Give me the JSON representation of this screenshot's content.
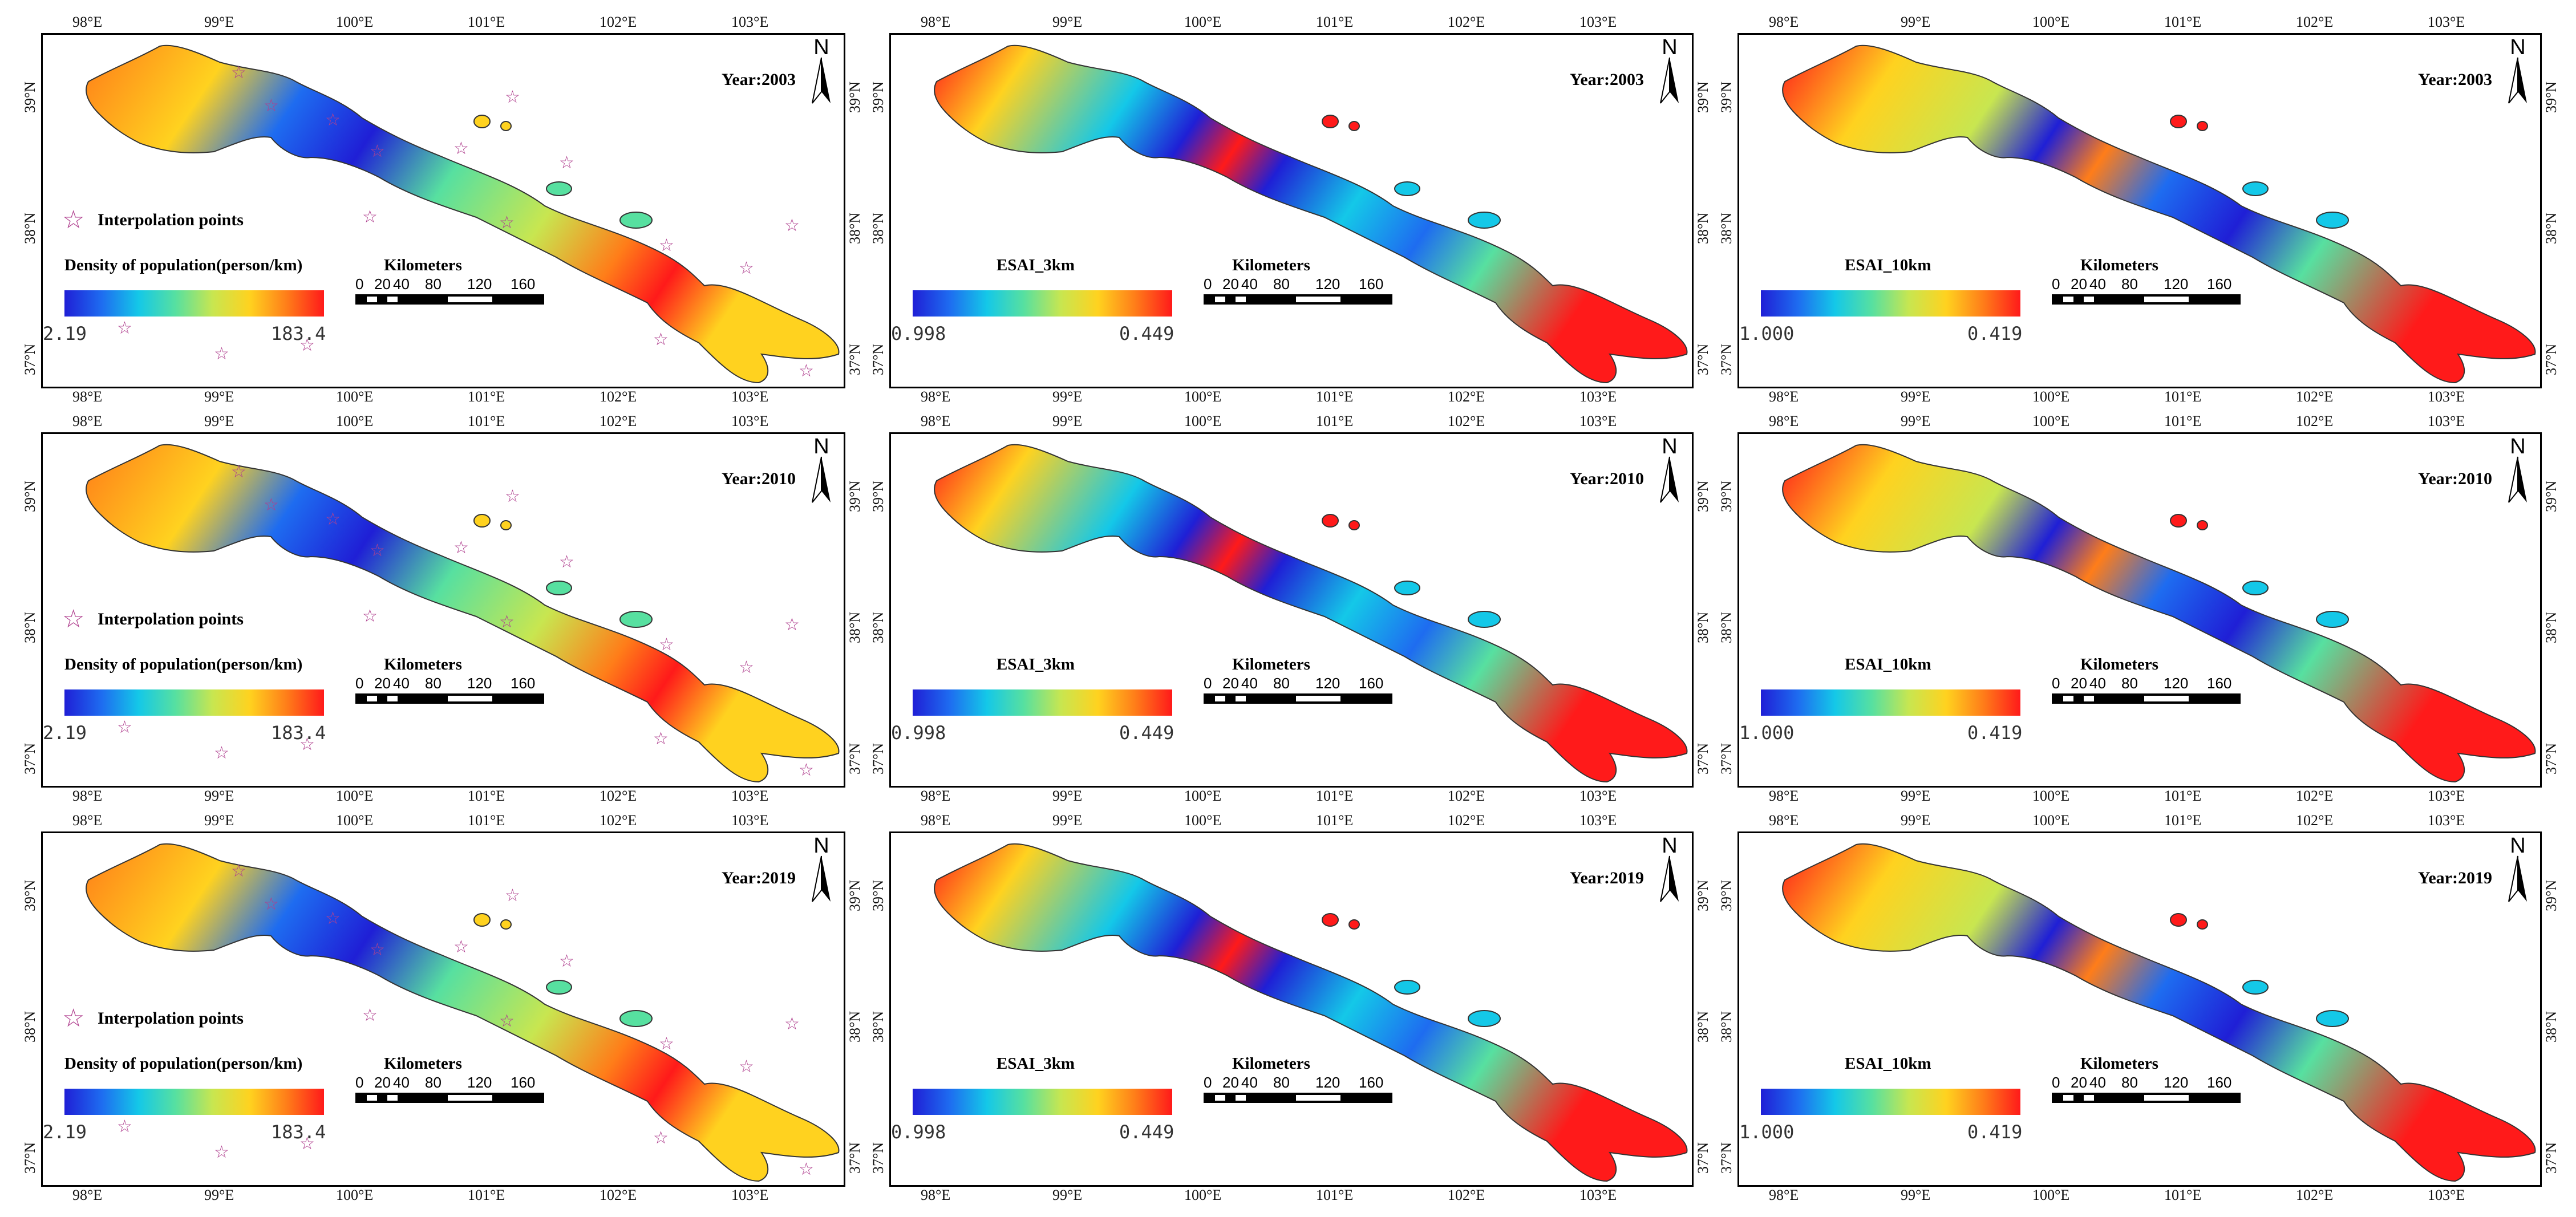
{
  "figure": {
    "rows": [
      {
        "year_label": "Year:2003"
      },
      {
        "year_label": "Year:2010"
      },
      {
        "year_label": "Year:2019"
      }
    ],
    "columns": [
      {
        "legend_title": "Density of population(person/km)",
        "min_label": "2.19",
        "max_label": "183.4",
        "colors": [
          "#1f1fd6",
          "#1e6cf0",
          "#14c8e8",
          "#57e0a0",
          "#c8e650",
          "#ffd21f",
          "#ff7d19",
          "#ff1a1a"
        ],
        "show_points": true
      },
      {
        "legend_title": "ESAI_3km",
        "min_label": "0.998",
        "max_label": "0.449",
        "colors": [
          "#1f1fd6",
          "#1e6cf0",
          "#14c8e8",
          "#57e0a0",
          "#c8e650",
          "#ffd21f",
          "#ff7d19",
          "#ff1a1a"
        ],
        "show_points": false
      },
      {
        "legend_title": "ESAI_10km",
        "min_label": "1.000",
        "max_label": "0.419",
        "colors": [
          "#1f1fd6",
          "#1e6cf0",
          "#14c8e8",
          "#57e0a0",
          "#c8e650",
          "#ffd21f",
          "#ff7d19",
          "#ff1a1a"
        ],
        "show_points": false
      }
    ],
    "lon_ticks": [
      "98°E",
      "99°E",
      "100°E",
      "101°E",
      "102°E",
      "103°E"
    ],
    "lat_ticks": [
      "39°N",
      "38°N",
      "37°N"
    ],
    "north_label": "N",
    "interp_label": "Interpolation points",
    "scale_title": "Kilometers",
    "scale_ticks": [
      "0",
      "20",
      "40",
      "80",
      "120",
      "160"
    ]
  }
}
